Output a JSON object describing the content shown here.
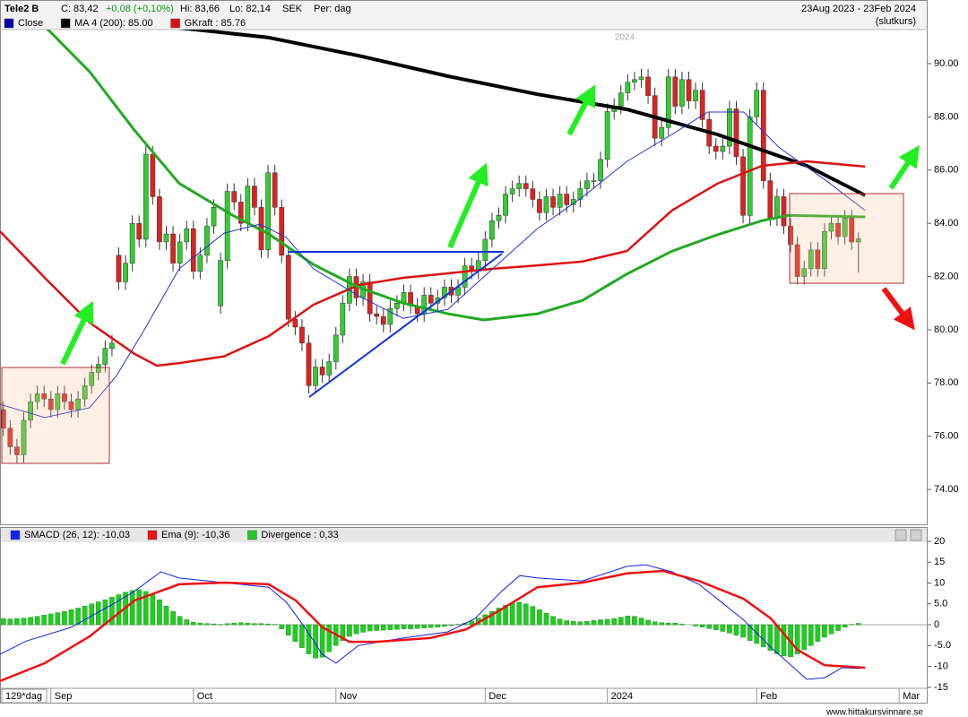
{
  "header": {
    "ticker": "Tele2 B",
    "close": "C: 83,42",
    "change": "+0,08 (+0,10%)",
    "high": "Hi: 83,66",
    "low": "Lo: 82,14",
    "currency": "SEK",
    "period": "Per: dag",
    "range": "23Aug 2023 - 23Feb 2024",
    "price_type": "(slutkurs)"
  },
  "chart_data": [
    {
      "type": "candlestick",
      "annotations": [
        "2024"
      ],
      "xlim": [
        -0.5,
        136.2
      ],
      "ylim": [
        72.69,
        91.28
      ],
      "yticks": [
        {
          "value": 74,
          "label": "74.00"
        },
        {
          "value": 76,
          "label": "76.00"
        },
        {
          "value": 78,
          "label": "78.00"
        },
        {
          "value": 80,
          "label": "80.00"
        },
        {
          "value": 82,
          "label": "82.00"
        },
        {
          "value": 84,
          "label": "84.00"
        },
        {
          "value": 86,
          "label": "86.00"
        },
        {
          "value": 88,
          "label": "88.00"
        },
        {
          "value": 90,
          "label": "90.00"
        }
      ],
      "x": [
        0,
        1,
        2,
        3,
        4,
        5,
        6,
        7,
        8,
        9,
        10,
        11,
        12,
        13,
        14,
        15,
        16,
        17,
        18,
        19,
        20,
        21,
        22,
        23,
        24,
        25,
        26,
        27,
        28,
        29,
        30,
        31,
        32,
        33,
        34,
        35,
        36,
        37,
        38,
        39,
        40,
        41,
        42,
        43,
        44,
        45,
        46,
        47,
        48,
        49,
        50,
        51,
        52,
        53,
        54,
        55,
        56,
        57,
        58,
        59,
        60,
        61,
        62,
        63,
        64,
        65,
        66,
        67,
        68,
        69,
        70,
        71,
        72,
        73,
        74,
        75,
        76,
        77,
        78,
        79,
        80,
        81,
        82,
        83,
        84,
        85,
        86,
        87,
        88,
        89,
        90,
        91,
        92,
        93,
        94,
        95,
        96,
        97,
        98,
        99,
        100,
        101,
        102,
        103,
        104,
        105,
        106,
        107,
        108,
        109,
        110,
        111,
        112,
        113,
        114,
        115,
        116,
        117,
        118,
        119,
        120,
        121,
        122,
        123,
        124,
        125,
        126
      ],
      "candles": {
        "name": "Close",
        "color": "#0000aa",
        "up_color": "#33cc33",
        "down_color": "#dd2222",
        "open": [
          77.0,
          76.3,
          75.6,
          75.3,
          76.6,
          77.3,
          77.6,
          77.4,
          77.0,
          77.6,
          77.3,
          77.0,
          77.4,
          77.9,
          78.4,
          78.7,
          79.3,
          82.8,
          81.8,
          82.5,
          84.0,
          83.4,
          86.6,
          85.0,
          83.3,
          83.6,
          82.5,
          83.3,
          83.8,
          82.2,
          82.8,
          83.9,
          80.9,
          82.6,
          85.2,
          84.8,
          84.0,
          85.4,
          84.6,
          83.0,
          85.9,
          84.6,
          82.8,
          80.4,
          80.1,
          79.5,
          77.9,
          78.6,
          78.3,
          78.8,
          79.8,
          81.0,
          82.0,
          81.2,
          81.8,
          80.6,
          80.5,
          80.2,
          80.8,
          81.0,
          81.4,
          80.9,
          80.6,
          81.3,
          81.0,
          81.2,
          81.6,
          81.3,
          81.6,
          82.4,
          82.2,
          82.6,
          83.4,
          84.1,
          84.3,
          85.1,
          85.3,
          85.5,
          85.3,
          84.9,
          84.4,
          85.0,
          84.6,
          85.1,
          84.7,
          84.9,
          85.3,
          85.6,
          85.6,
          86.4,
          88.2,
          88.4,
          88.9,
          89.3,
          89.4,
          89.5,
          88.8,
          87.2,
          87.6,
          89.5,
          88.4,
          89.4,
          88.6,
          89.0,
          87.9,
          86.9,
          86.7,
          86.9,
          88.3,
          86.5,
          84.3,
          88.0,
          89.0,
          85.6,
          84.2,
          85.0,
          83.9,
          83.2,
          82.0,
          82.3,
          83.0,
          82.3,
          83.7,
          84.0,
          83.5,
          84.2,
          83.3
        ],
        "high": [
          77.3,
          76.6,
          75.9,
          76.9,
          77.6,
          77.9,
          77.9,
          77.7,
          77.9,
          77.9,
          77.6,
          77.7,
          78.2,
          78.7,
          79.0,
          79.6,
          79.8,
          83.1,
          82.8,
          84.3,
          84.3,
          86.9,
          86.9,
          85.3,
          83.9,
          83.9,
          83.6,
          84.1,
          84.1,
          83.1,
          84.2,
          84.9,
          82.9,
          85.5,
          85.5,
          85.1,
          85.7,
          85.7,
          84.9,
          86.2,
          86.2,
          84.9,
          83.1,
          80.7,
          80.4,
          79.8,
          78.9,
          78.9,
          79.1,
          80.1,
          81.3,
          82.3,
          82.3,
          82.1,
          82.1,
          80.9,
          80.8,
          81.1,
          81.3,
          81.7,
          81.7,
          81.2,
          81.6,
          81.6,
          81.5,
          81.9,
          81.9,
          81.9,
          82.7,
          82.7,
          82.9,
          83.7,
          84.4,
          84.6,
          85.4,
          85.6,
          85.8,
          85.8,
          85.6,
          85.2,
          85.3,
          85.3,
          85.4,
          85.4,
          85.2,
          85.6,
          85.9,
          85.9,
          86.7,
          88.5,
          88.7,
          89.2,
          89.6,
          89.7,
          89.8,
          89.8,
          89.1,
          87.9,
          89.8,
          89.8,
          89.7,
          89.7,
          89.3,
          89.3,
          88.2,
          87.2,
          87.2,
          88.6,
          88.6,
          86.8,
          88.3,
          89.3,
          89.3,
          85.9,
          85.3,
          85.3,
          84.2,
          83.5,
          82.6,
          83.3,
          83.3,
          84.0,
          84.3,
          84.3,
          84.5,
          84.5,
          83.66
        ],
        "low": [
          76.0,
          75.3,
          75.0,
          75.0,
          76.3,
          77.0,
          77.1,
          76.7,
          76.7,
          77.0,
          76.7,
          76.7,
          77.1,
          77.6,
          78.1,
          78.4,
          79.0,
          81.5,
          81.5,
          82.2,
          83.1,
          83.1,
          84.7,
          83.0,
          83.0,
          82.2,
          82.2,
          83.0,
          81.9,
          81.9,
          82.5,
          83.6,
          80.6,
          82.3,
          84.5,
          83.7,
          83.7,
          84.3,
          82.7,
          82.7,
          84.3,
          82.5,
          80.1,
          79.8,
          79.2,
          77.6,
          77.6,
          78.0,
          78.0,
          78.5,
          79.5,
          80.7,
          80.9,
          80.9,
          80.3,
          80.2,
          79.9,
          79.9,
          80.5,
          80.7,
          80.6,
          80.3,
          80.3,
          80.7,
          80.7,
          80.9,
          81.0,
          81.0,
          81.3,
          81.9,
          81.9,
          82.3,
          83.1,
          83.8,
          84.0,
          84.8,
          85.0,
          85.0,
          84.6,
          84.1,
          84.1,
          84.3,
          84.3,
          84.4,
          84.4,
          84.6,
          85.0,
          85.3,
          85.3,
          86.1,
          87.9,
          88.1,
          88.6,
          89.0,
          89.1,
          88.5,
          86.9,
          86.9,
          87.3,
          88.1,
          88.1,
          88.3,
          88.3,
          87.6,
          86.6,
          86.4,
          86.4,
          86.6,
          86.2,
          84.0,
          84.0,
          87.7,
          85.3,
          83.9,
          83.9,
          83.6,
          82.9,
          81.7,
          81.7,
          82.0,
          82.0,
          82.0,
          83.4,
          83.2,
          83.2,
          83.0,
          82.14
        ],
        "close": [
          76.3,
          75.6,
          75.3,
          76.6,
          77.3,
          77.6,
          77.4,
          77.0,
          77.6,
          77.3,
          77.0,
          77.4,
          77.9,
          78.4,
          78.7,
          79.3,
          79.5,
          81.8,
          82.5,
          84.0,
          83.4,
          86.6,
          85.0,
          83.3,
          83.6,
          82.5,
          83.3,
          83.8,
          82.2,
          82.8,
          83.9,
          84.6,
          82.6,
          85.2,
          84.8,
          84.0,
          85.4,
          84.6,
          83.0,
          85.9,
          84.6,
          82.8,
          80.4,
          80.1,
          79.5,
          77.9,
          78.6,
          78.3,
          78.8,
          79.8,
          81.0,
          82.0,
          81.2,
          81.8,
          80.6,
          80.5,
          80.2,
          80.8,
          81.0,
          81.4,
          80.9,
          80.6,
          81.3,
          81.0,
          81.2,
          81.6,
          81.3,
          81.6,
          82.4,
          82.2,
          82.6,
          83.4,
          84.1,
          84.3,
          85.1,
          85.3,
          85.5,
          85.3,
          84.9,
          84.4,
          85.0,
          84.6,
          85.1,
          84.7,
          84.9,
          85.3,
          85.6,
          85.6,
          86.4,
          88.2,
          88.4,
          88.9,
          89.3,
          89.4,
          89.5,
          88.8,
          87.2,
          87.6,
          89.5,
          88.4,
          89.4,
          88.6,
          89.0,
          87.9,
          86.9,
          86.7,
          86.9,
          88.3,
          86.5,
          84.3,
          88.0,
          89.0,
          85.6,
          84.2,
          85.0,
          83.9,
          83.2,
          82.0,
          82.3,
          83.0,
          82.3,
          83.7,
          84.0,
          83.5,
          84.2,
          83.3,
          83.42
        ]
      },
      "lines": [
        {
          "name": "MA 4 (200): 85.00",
          "color": "#000000",
          "width": 4,
          "x": [
            24.6,
            39.1,
            52.3,
            65.5,
            78.7,
            91.9,
            105.2,
            118.4,
            127
          ],
          "values": [
            91.38,
            90.98,
            90.3,
            89.53,
            88.85,
            88.28,
            87.34,
            86.16,
            85.05
          ]
        },
        {
          "name": "GKraft : 85.76",
          "color": "#dd1111",
          "width": 2.5,
          "x": [
            -0.5,
            6.1,
            12.7,
            19.3,
            22.6,
            25.9,
            32.5,
            39.1,
            45.7,
            52.3,
            58.9,
            65.5,
            72.1,
            78.7,
            85.3,
            91.9,
            98.5,
            105.2,
            111.8,
            118.4,
            127
          ],
          "values": [
            83.7,
            81.95,
            80.27,
            79.1,
            78.65,
            78.75,
            79.0,
            79.76,
            80.94,
            81.68,
            81.95,
            82.12,
            82.29,
            82.42,
            82.56,
            82.96,
            84.48,
            85.49,
            86.16,
            86.33,
            86.13
          ]
        },
        {
          "color": "#22aa22",
          "width": 3,
          "x": [
            6.1,
            12.7,
            19.3,
            25.9,
            33.8,
            39.1,
            45.7,
            52.3,
            58.9,
            65.5,
            70.8,
            78.7,
            85.3,
            91.9,
            98.5,
            105.2,
            111.8,
            115.7,
            127
          ],
          "values": [
            91.4,
            89.7,
            87.5,
            85.5,
            84.3,
            83.6,
            82.45,
            81.6,
            81.0,
            80.6,
            80.37,
            80.6,
            81.1,
            82.1,
            82.95,
            83.57,
            84.1,
            84.3,
            84.24
          ]
        },
        {
          "color": "#2233cc",
          "width": 1,
          "x": [
            -0.5,
            6.1,
            12.7,
            16.6,
            20.6,
            25.9,
            32.5,
            37.8,
            41.7,
            45.7,
            52.3,
            58.9,
            65.5,
            72.1,
            78.7,
            85.3,
            91.9,
            98.5,
            103.8,
            109.1,
            114.4,
            121,
            127
          ],
          "values": [
            77.2,
            76.7,
            77.07,
            78.25,
            79.93,
            82.29,
            83.63,
            83.97,
            83.47,
            82.29,
            81.28,
            80.43,
            80.77,
            82.29,
            83.8,
            84.98,
            86.33,
            87.34,
            88.18,
            88.18,
            86.83,
            85.65,
            84.48
          ]
        }
      ]
    },
    {
      "type": "macd",
      "period_label": "129*dag",
      "xlim": [
        -0.5,
        136.2
      ],
      "ylim": [
        -18.9,
        20
      ],
      "xticks": [
        {
          "value": 7,
          "label": "Sep"
        },
        {
          "value": 28,
          "label": "Oct"
        },
        {
          "value": 49,
          "label": "Nov"
        },
        {
          "value": 71,
          "label": "Dec"
        },
        {
          "value": 89,
          "label": "2024"
        },
        {
          "value": 111,
          "label": "Feb"
        },
        {
          "value": 132,
          "label": "Mar"
        }
      ],
      "yticks": [
        20,
        15,
        10,
        {
          "value": 5,
          "label": "5.0"
        },
        0,
        {
          "value": -5,
          "label": "-5.0"
        },
        -10,
        -15
      ],
      "series": [
        {
          "name": "SMACD (26, 12): -10,03",
          "color": "#1122ee",
          "x": [
            -0.5,
            3.4,
            10,
            16.6,
            19.3,
            23.2,
            25.9,
            32.5,
            39.1,
            41.7,
            44.4,
            47,
            49,
            52.3,
            58.9,
            65.5,
            69.5,
            73.4,
            76.1,
            78.7,
            85.3,
            91.9,
            94.6,
            98.5,
            102.5,
            105.2,
            109.1,
            113.1,
            115.7,
            118.4,
            121,
            123.6,
            126.3
          ],
          "values": [
            -7.1,
            -3.9,
            -0.6,
            5.4,
            8.0,
            12.7,
            11.2,
            10.1,
            9.0,
            5.4,
            -0.6,
            -7.1,
            -9.2,
            -5.0,
            -3.2,
            -1.7,
            1.5,
            8.0,
            11.8,
            11.2,
            10.5,
            14.0,
            14.4,
            12.7,
            9.7,
            6.2,
            1.1,
            -5.4,
            -9.2,
            -13.1,
            -12.7,
            -10.3,
            -10.5
          ]
        },
        {
          "name": "Ema (9): -10,36",
          "color": "#ee1111",
          "x": [
            -0.5,
            6.1,
            12.7,
            19.3,
            25.9,
            32.5,
            39.1,
            43.1,
            47,
            51,
            55,
            62.9,
            68.2,
            73.4,
            78.7,
            85.3,
            91.9,
            97.2,
            102.5,
            109.1,
            113.1,
            117,
            121,
            127
          ],
          "values": [
            -13.5,
            -9.2,
            -2.8,
            5.8,
            9.7,
            10.1,
            9.7,
            5.8,
            -0.6,
            -4.1,
            -4.1,
            -3.2,
            -1.1,
            3.7,
            9.0,
            10.1,
            12.3,
            12.9,
            10.5,
            6.2,
            1.5,
            -6.0,
            -9.7,
            -10.3
          ]
        }
      ],
      "histogram": {
        "name": "Divergence : 0,33",
        "color": "#22cc22",
        "values": [
          1.5,
          1.4,
          1.5,
          1.6,
          1.8,
          2.0,
          2.3,
          2.6,
          2.9,
          3.2,
          3.6,
          4.0,
          4.5,
          5.0,
          5.5,
          6.0,
          6.6,
          7.2,
          7.8,
          8.2,
          8.4,
          8.0,
          7.2,
          6.0,
          4.5,
          3.2,
          2.0,
          1.2,
          0.6,
          0.4,
          0.3,
          0.2,
          0.1,
          0.3,
          0.4,
          0.5,
          0.4,
          0.3,
          0.3,
          0.2,
          0.1,
          -1.0,
          -2.5,
          -4.0,
          -5.5,
          -7.0,
          -8.0,
          -7.8,
          -6.5,
          -5.0,
          -3.8,
          -2.8,
          -2.2,
          -1.8,
          -1.5,
          -1.4,
          -1.3,
          -1.2,
          -1.1,
          -1.0,
          -1.0,
          -0.9,
          -0.8,
          -0.7,
          -0.6,
          -0.4,
          -0.2,
          0.1,
          0.4,
          0.9,
          1.6,
          2.4,
          3.2,
          4.0,
          4.7,
          5.2,
          5.4,
          5.0,
          4.4,
          3.6,
          2.8,
          2.0,
          1.4,
          1.0,
          0.8,
          0.7,
          0.8,
          1.0,
          1.2,
          1.3,
          1.5,
          1.8,
          2.1,
          2.0,
          1.6,
          1.1,
          0.7,
          0.5,
          0.4,
          0.4,
          0.2,
          0.0,
          -0.3,
          -0.6,
          -0.9,
          -1.2,
          -1.6,
          -2.0,
          -2.5,
          -3.0,
          -3.8,
          -4.5,
          -5.3,
          -6.2,
          -7.0,
          -7.5,
          -7.7,
          -7.0,
          -6.0,
          -5.0,
          -4.0,
          -3.0,
          -2.2,
          -1.4,
          -0.6,
          0.1,
          0.33
        ]
      }
    }
  ],
  "footer": "www.hittakursvinnare.se"
}
